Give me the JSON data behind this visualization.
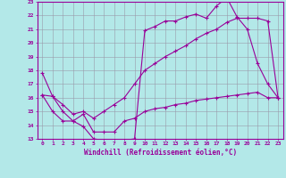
{
  "xlabel": "Windchill (Refroidissement éolien,°C)",
  "xlim": [
    -0.5,
    23.5
  ],
  "ylim": [
    13,
    23
  ],
  "yticks": [
    13,
    14,
    15,
    16,
    17,
    18,
    19,
    20,
    21,
    22,
    23
  ],
  "xticks": [
    0,
    1,
    2,
    3,
    4,
    5,
    6,
    7,
    8,
    9,
    10,
    11,
    12,
    13,
    14,
    15,
    16,
    17,
    18,
    19,
    20,
    21,
    22,
    23
  ],
  "line_color": "#990099",
  "bg_color": "#b3e8e8",
  "grid_color": "#9999aa",
  "line1_x": [
    0,
    1,
    2,
    3,
    4,
    5,
    6,
    7,
    8,
    9,
    10,
    11,
    12,
    13,
    14,
    15,
    16,
    17,
    18,
    19,
    20,
    21,
    22,
    23
  ],
  "line1_y": [
    17.8,
    16.1,
    15.0,
    14.3,
    13.9,
    13.0,
    12.9,
    12.8,
    12.9,
    13.0,
    20.9,
    21.2,
    21.6,
    21.6,
    21.9,
    22.1,
    21.8,
    22.7,
    23.3,
    21.9,
    21.0,
    18.5,
    17.0,
    16.0
  ],
  "line2_x": [
    0,
    1,
    2,
    3,
    4,
    5,
    6,
    7,
    8,
    9,
    10,
    11,
    12,
    13,
    14,
    15,
    16,
    17,
    18,
    19,
    20,
    21,
    22,
    23
  ],
  "line2_y": [
    16.2,
    16.1,
    15.5,
    14.8,
    15.0,
    14.5,
    15.0,
    15.5,
    16.0,
    17.0,
    18.0,
    18.5,
    19.0,
    19.4,
    19.8,
    20.3,
    20.7,
    21.0,
    21.5,
    21.8,
    21.8,
    21.8,
    21.6,
    16.0
  ],
  "line3_x": [
    0,
    1,
    2,
    3,
    4,
    5,
    6,
    7,
    8,
    9,
    10,
    11,
    12,
    13,
    14,
    15,
    16,
    17,
    18,
    19,
    20,
    21,
    22,
    23
  ],
  "line3_y": [
    16.2,
    15.0,
    14.3,
    14.3,
    14.8,
    13.5,
    13.5,
    13.5,
    14.3,
    14.5,
    15.0,
    15.2,
    15.3,
    15.5,
    15.6,
    15.8,
    15.9,
    16.0,
    16.1,
    16.2,
    16.3,
    16.4,
    16.0,
    16.0
  ]
}
